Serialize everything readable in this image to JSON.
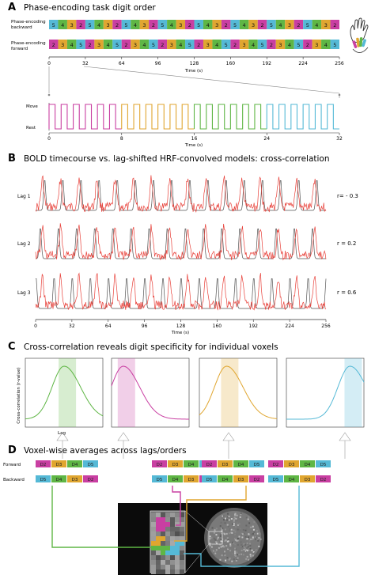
{
  "colors": {
    "digit2": "#c93fa2",
    "digit3": "#e0a630",
    "digit4": "#5fb645",
    "digit5": "#55b9d6",
    "bold_trace": "#e8413a",
    "model_trace": "#555555"
  },
  "panelA": {
    "letter": "A",
    "title": "Phase-encoding task digit order",
    "row_backward_label_line1": "Phase-encoding",
    "row_backward_label_line2": "backward",
    "row_forward_label_line1": "Phase-encoding",
    "row_forward_label_line2": "forward",
    "backward_sequence": [
      5,
      4,
      3,
      2,
      5,
      4,
      3,
      2,
      5,
      4,
      3,
      2,
      5,
      4,
      3,
      2,
      5,
      4,
      3,
      2,
      5,
      4,
      3,
      2,
      5,
      4,
      3,
      2,
      5,
      4,
      3,
      2
    ],
    "forward_sequence": [
      2,
      3,
      4,
      5,
      2,
      3,
      4,
      5,
      2,
      3,
      4,
      5,
      2,
      3,
      4,
      5,
      2,
      3,
      4,
      5,
      2,
      3,
      4,
      5,
      2,
      3,
      4,
      5,
      2,
      3,
      4,
      5
    ],
    "time_ticks": [
      "0",
      "32",
      "64",
      "96",
      "128",
      "160",
      "192",
      "224",
      "256"
    ],
    "time_label": "Time (s)",
    "zoom_ticks": [
      "0",
      "8",
      "16",
      "24",
      "32"
    ],
    "zoom_time_label": "Time (s)",
    "zoom_move_label": "Move",
    "zoom_rest_label": "Rest"
  },
  "panelB": {
    "letter": "B",
    "title": "BOLD timecourse vs. lag-shifted HRF-convolved models: cross-correlation",
    "lags": [
      {
        "label": "Lag 1",
        "r": "r= - 0.3"
      },
      {
        "label": "Lag 2",
        "r": "r = 0.2"
      },
      {
        "label": "Lag 3",
        "r": "r = 0.6"
      }
    ],
    "time_ticks": [
      "0",
      "32",
      "64",
      "96",
      "128",
      "160",
      "192",
      "224",
      "256"
    ],
    "time_label": "Time (s)"
  },
  "panelC": {
    "letter": "C",
    "title": "Cross-correlation reveals digit specificity for individual voxels",
    "ylabel": "Cross-correlation (r-value)",
    "xlabel": "Lag"
  },
  "panelD": {
    "letter": "D",
    "title": "Voxel-wise averages across lags/orders",
    "forward_label": "Forward",
    "backward_label": "Backward",
    "forward_digits": [
      "D2",
      "D3",
      "D4",
      "D5"
    ],
    "backward_digits": [
      "D5",
      "D4",
      "D3",
      "D2"
    ]
  }
}
